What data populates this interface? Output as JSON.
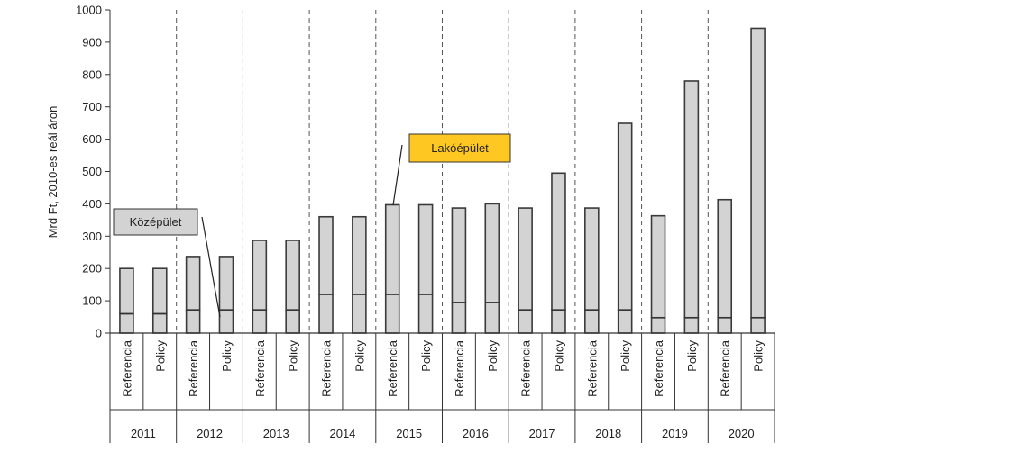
{
  "chart_data": {
    "type": "bar",
    "ylabel": "Mrd Ft, 2010-es reál áron",
    "ylim": [
      0,
      1000
    ],
    "yticks": [
      0,
      100,
      200,
      300,
      400,
      500,
      600,
      700,
      800,
      900,
      1000
    ],
    "scenario_labels": [
      "Referencia",
      "Policy"
    ],
    "years": [
      "2011",
      "2012",
      "2013",
      "2014",
      "2015",
      "2016",
      "2017",
      "2018",
      "2019",
      "2020"
    ],
    "series": [
      {
        "name": "Középület",
        "values": [
          [
            60,
            60
          ],
          [
            72,
            72
          ],
          [
            72,
            72
          ],
          [
            120,
            120
          ],
          [
            120,
            120
          ],
          [
            95,
            95
          ],
          [
            72,
            72
          ],
          [
            72,
            72
          ],
          [
            48,
            48
          ],
          [
            48,
            48
          ]
        ]
      },
      {
        "name": "Lakóépület",
        "values": [
          [
            140,
            140
          ],
          [
            165,
            165
          ],
          [
            215,
            215
          ],
          [
            240,
            240
          ],
          [
            277,
            277
          ],
          [
            292,
            305
          ],
          [
            315,
            423
          ],
          [
            315,
            577
          ],
          [
            315,
            732
          ],
          [
            365,
            895
          ]
        ]
      }
    ],
    "totals": [
      [
        200,
        200
      ],
      [
        237,
        237
      ],
      [
        287,
        287
      ],
      [
        360,
        360
      ],
      [
        397,
        397
      ],
      [
        387,
        400
      ],
      [
        387,
        495
      ],
      [
        387,
        649
      ],
      [
        363,
        780
      ],
      [
        413,
        943
      ]
    ],
    "annotations": [
      {
        "label": "Középület",
        "style": "gray"
      },
      {
        "label": "Lakóépület",
        "style": "yellow"
      }
    ],
    "colors": {
      "bar_fill": "#d3d3d3",
      "bar_stroke": "#3a3a3a",
      "annotation_gray": "#d3d3d3",
      "annotation_yellow": "#ffc722",
      "axis": "#333333"
    },
    "grid": false,
    "group_separators": "dashed vertical lines"
  }
}
